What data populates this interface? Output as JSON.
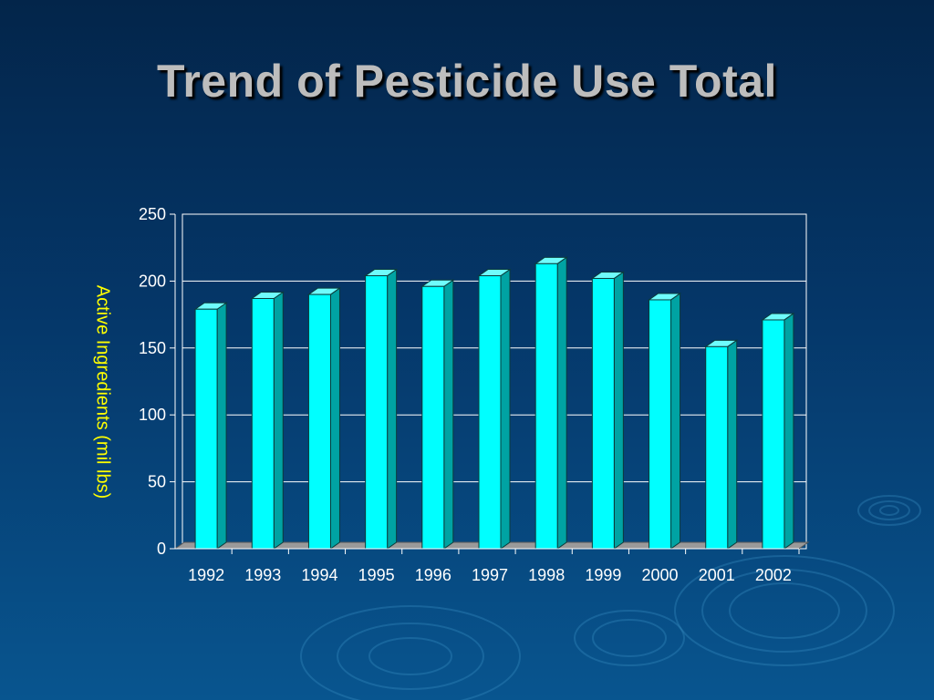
{
  "slide": {
    "title": "Trend of Pesticide Use Total"
  },
  "colors": {
    "bar_front": "#00ffff",
    "bar_side": "#00a3a3",
    "bar_top": "#6ffcfc",
    "bar_outline": "#0b3b3b",
    "plot_border": "#ffffff",
    "gridline": "#ffffff",
    "floor": "#9a9a9a",
    "y_axis_title": "#ffff00",
    "title_text": "#bdbdbd"
  },
  "chart_data": {
    "type": "bar",
    "title": "Trend of Pesticide Use Total",
    "xlabel": "",
    "ylabel": "Active Ingredients (mil lbs)",
    "categories": [
      "1992",
      "1993",
      "1994",
      "1995",
      "1996",
      "1997",
      "1998",
      "1999",
      "2000",
      "2001",
      "2002"
    ],
    "values": [
      179,
      187,
      190,
      204,
      196,
      204,
      213,
      202,
      186,
      151,
      171
    ],
    "ylim": [
      0,
      250
    ],
    "yticks": [
      0,
      50,
      100,
      150,
      200,
      250
    ],
    "grid": true,
    "legend": "none",
    "style": "3d-column"
  }
}
